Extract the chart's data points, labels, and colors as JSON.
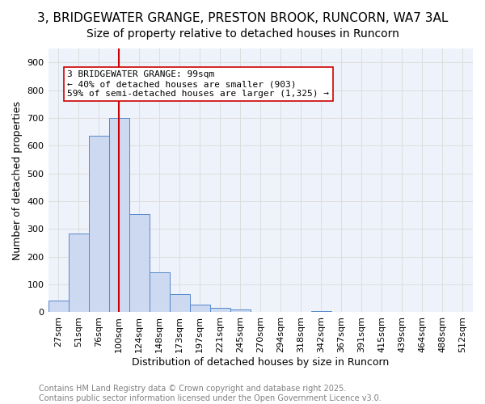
{
  "title": "3, BRIDGEWATER GRANGE, PRESTON BROOK, RUNCORN, WA7 3AL",
  "subtitle": "Size of property relative to detached houses in Runcorn",
  "xlabel": "Distribution of detached houses by size in Runcorn",
  "ylabel": "Number of detached properties",
  "bar_values": [
    42,
    285,
    635,
    700,
    352,
    143,
    65,
    28,
    15,
    10,
    0,
    0,
    0,
    5,
    0,
    0,
    0,
    0,
    0,
    0,
    0
  ],
  "bin_labels": [
    "27sqm",
    "51sqm",
    "76sqm",
    "100sqm",
    "124sqm",
    "148sqm",
    "173sqm",
    "197sqm",
    "221sqm",
    "245sqm",
    "270sqm",
    "294sqm",
    "318sqm",
    "342sqm",
    "367sqm",
    "391sqm",
    "415sqm",
    "439sqm",
    "464sqm",
    "488sqm",
    "512sqm"
  ],
  "bar_color": "#ccd9f0",
  "bar_edge_color": "#5588cc",
  "vline_x": 3,
  "vline_color": "#cc0000",
  "annotation_text": "3 BRIDGEWATER GRANGE: 99sqm\n← 40% of detached houses are smaller (903)\n59% of semi-detached houses are larger (1,325) →",
  "annotation_box_color": "white",
  "annotation_box_edge_color": "#cc0000",
  "grid_color": "#dddddd",
  "background_color": "#eef2fb",
  "ylim": [
    0,
    950
  ],
  "yticks": [
    0,
    100,
    200,
    300,
    400,
    500,
    600,
    700,
    800,
    900
  ],
  "footer_text": "Contains HM Land Registry data © Crown copyright and database right 2025.\nContains public sector information licensed under the Open Government Licence v3.0.",
  "title_fontsize": 11,
  "subtitle_fontsize": 10,
  "axis_label_fontsize": 9,
  "tick_fontsize": 8,
  "annotation_fontsize": 8,
  "footer_fontsize": 7
}
